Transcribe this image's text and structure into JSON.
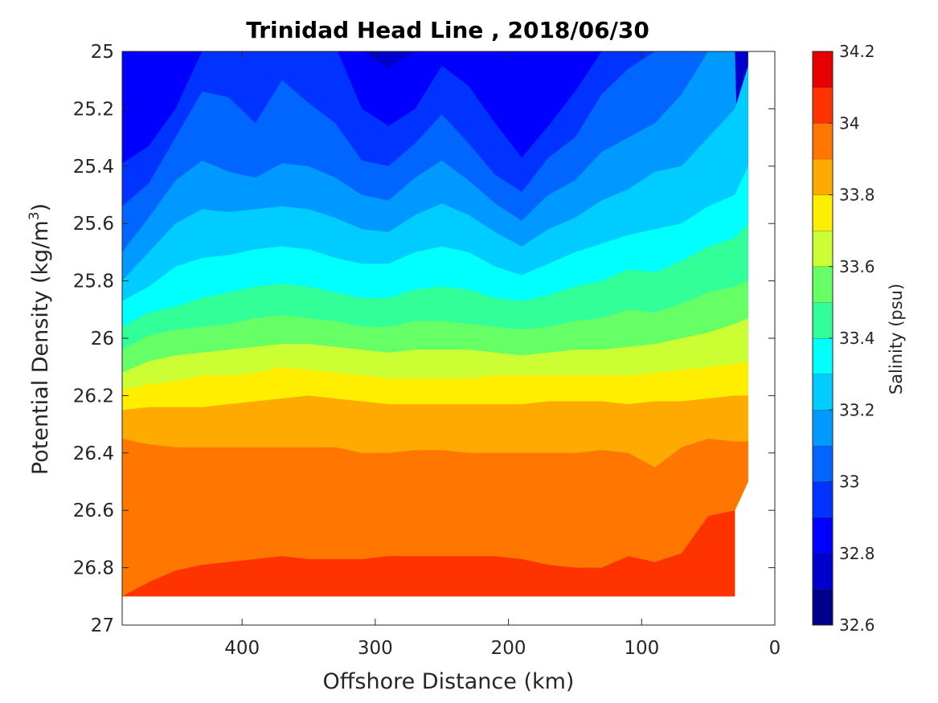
{
  "chart_data": {
    "type": "heatmap",
    "title": "Trinidad Head Line , 2018/06/30",
    "xlabel": "Offshore Distance (km)",
    "ylabel": "Potential Density (kg/m",
    "ylabel_superscript": "3",
    "ylabel_suffix": ")",
    "xlim": [
      490,
      0
    ],
    "ylim": [
      25,
      27
    ],
    "x_reversed": true,
    "y_reversed": true,
    "x_ticks": [
      400,
      300,
      200,
      100,
      0
    ],
    "y_ticks": [
      25,
      25.2,
      25.4,
      25.6,
      25.8,
      26,
      26.2,
      26.4,
      26.6,
      26.8,
      27
    ],
    "colorbar": {
      "label": "Salinity (psu)",
      "range": [
        32.6,
        34.2
      ],
      "ticks": [
        32.6,
        32.8,
        33,
        33.2,
        33.4,
        33.6,
        33.8,
        34,
        34.2
      ],
      "levels": [
        32.6,
        32.7,
        32.8,
        32.9,
        33.0,
        33.1,
        33.2,
        33.3,
        33.4,
        33.5,
        33.6,
        33.7,
        33.8,
        33.9,
        34.0,
        34.1,
        34.2
      ],
      "colors": [
        "#00008b",
        "#0000cd",
        "#0000ff",
        "#0033ff",
        "#0066ff",
        "#0099ff",
        "#00ccff",
        "#00ffff",
        "#33ff99",
        "#66ff66",
        "#ccff33",
        "#ffee00",
        "#ffaa00",
        "#ff7700",
        "#ff3300",
        "#e60000"
      ]
    },
    "data_extent": {
      "x_max": 490,
      "x_min_upper": 20,
      "x_min_lower": 30,
      "y_min": 25,
      "y_max": 26.9
    },
    "contours": {
      "x": [
        490,
        470,
        450,
        430,
        410,
        390,
        370,
        350,
        330,
        310,
        290,
        270,
        250,
        230,
        210,
        190,
        170,
        150,
        130,
        110,
        90,
        70,
        50,
        30,
        20
      ],
      "boundaries": [
        {
          "level": 32.8,
          "y": [
            null,
            null,
            null,
            null,
            null,
            null,
            null,
            null,
            null,
            25.0,
            25.06,
            25.0,
            null,
            null,
            null,
            null,
            null,
            null,
            null,
            null,
            null,
            null,
            null,
            null,
            null
          ]
        },
        {
          "level": 32.9,
          "y": [
            25.39,
            25.33,
            25.2,
            25.0,
            25.0,
            null,
            null,
            null,
            null,
            25.2,
            25.26,
            25.2,
            25.05,
            25.12,
            25.25,
            25.37,
            25.26,
            25.14,
            25.0,
            null,
            null,
            null,
            null,
            null,
            null
          ]
        },
        {
          "level": 33.0,
          "y": [
            25.54,
            25.46,
            25.3,
            25.14,
            25.16,
            25.25,
            25.1,
            25.18,
            25.25,
            25.38,
            25.4,
            25.32,
            25.22,
            25.32,
            25.43,
            25.49,
            25.37,
            25.3,
            25.15,
            25.06,
            25.0,
            null,
            null,
            null,
            null
          ]
        },
        {
          "level": 33.1,
          "y": [
            25.7,
            25.58,
            25.45,
            25.38,
            25.42,
            25.44,
            25.39,
            25.4,
            25.44,
            25.5,
            25.52,
            25.44,
            25.38,
            25.45,
            25.53,
            25.59,
            25.5,
            25.45,
            25.35,
            25.3,
            25.25,
            25.15,
            25.0,
            25.0,
            null
          ]
        },
        {
          "level": 33.2,
          "y": [
            25.8,
            25.7,
            25.6,
            25.55,
            25.56,
            25.55,
            25.54,
            25.55,
            25.58,
            25.62,
            25.63,
            25.57,
            25.53,
            25.57,
            25.63,
            25.68,
            25.62,
            25.58,
            25.52,
            25.48,
            25.42,
            25.4,
            25.3,
            25.2,
            25.05
          ]
        },
        {
          "level": 33.3,
          "y": [
            25.87,
            25.82,
            25.75,
            25.72,
            25.71,
            25.69,
            25.68,
            25.69,
            25.72,
            25.74,
            25.74,
            25.7,
            25.68,
            25.7,
            25.75,
            25.78,
            25.74,
            25.7,
            25.67,
            25.64,
            25.62,
            25.6,
            25.54,
            25.5,
            25.4
          ]
        },
        {
          "level": 33.4,
          "y": [
            25.96,
            25.91,
            25.89,
            25.86,
            25.84,
            25.82,
            25.81,
            25.82,
            25.84,
            25.86,
            25.86,
            25.83,
            25.82,
            25.83,
            25.86,
            25.87,
            25.85,
            25.82,
            25.8,
            25.76,
            25.77,
            25.73,
            25.68,
            25.65,
            25.6
          ]
        },
        {
          "level": 33.5,
          "y": [
            26.04,
            25.99,
            25.97,
            25.96,
            25.95,
            25.93,
            25.92,
            25.93,
            25.94,
            25.96,
            25.96,
            25.94,
            25.94,
            25.95,
            25.96,
            25.97,
            25.96,
            25.94,
            25.93,
            25.9,
            25.91,
            25.88,
            25.84,
            25.82,
            25.8
          ]
        },
        {
          "level": 33.6,
          "y": [
            26.12,
            26.08,
            26.06,
            26.05,
            26.04,
            26.03,
            26.02,
            26.02,
            26.03,
            26.04,
            26.05,
            26.04,
            26.04,
            26.04,
            26.05,
            26.06,
            26.05,
            26.04,
            26.04,
            26.03,
            26.02,
            26.0,
            25.98,
            25.95,
            25.93
          ]
        },
        {
          "level": 33.7,
          "y": [
            26.18,
            26.16,
            26.15,
            26.13,
            26.13,
            26.12,
            26.1,
            26.11,
            26.12,
            26.13,
            26.14,
            26.14,
            26.14,
            26.14,
            26.13,
            26.13,
            26.13,
            26.13,
            26.13,
            26.13,
            26.12,
            26.11,
            26.1,
            26.09,
            26.08
          ]
        },
        {
          "level": 33.8,
          "y": [
            26.25,
            26.24,
            26.24,
            26.24,
            26.23,
            26.22,
            26.21,
            26.2,
            26.21,
            26.22,
            26.23,
            26.23,
            26.23,
            26.23,
            26.23,
            26.23,
            26.22,
            26.22,
            26.22,
            26.23,
            26.22,
            26.22,
            26.21,
            26.2,
            26.2
          ]
        },
        {
          "level": 33.9,
          "y": [
            26.35,
            26.37,
            26.38,
            26.38,
            26.38,
            26.38,
            26.38,
            26.38,
            26.38,
            26.4,
            26.4,
            26.39,
            26.39,
            26.4,
            26.4,
            26.4,
            26.4,
            26.4,
            26.39,
            26.4,
            26.45,
            26.38,
            26.35,
            26.36,
            26.36
          ]
        },
        {
          "level": 34.0,
          "y": [
            26.9,
            26.85,
            26.81,
            26.79,
            26.78,
            26.77,
            26.76,
            26.77,
            26.77,
            26.77,
            26.76,
            26.76,
            26.76,
            26.76,
            26.76,
            26.77,
            26.79,
            26.8,
            26.8,
            26.76,
            26.78,
            26.75,
            26.62,
            26.6,
            null
          ]
        }
      ]
    }
  }
}
